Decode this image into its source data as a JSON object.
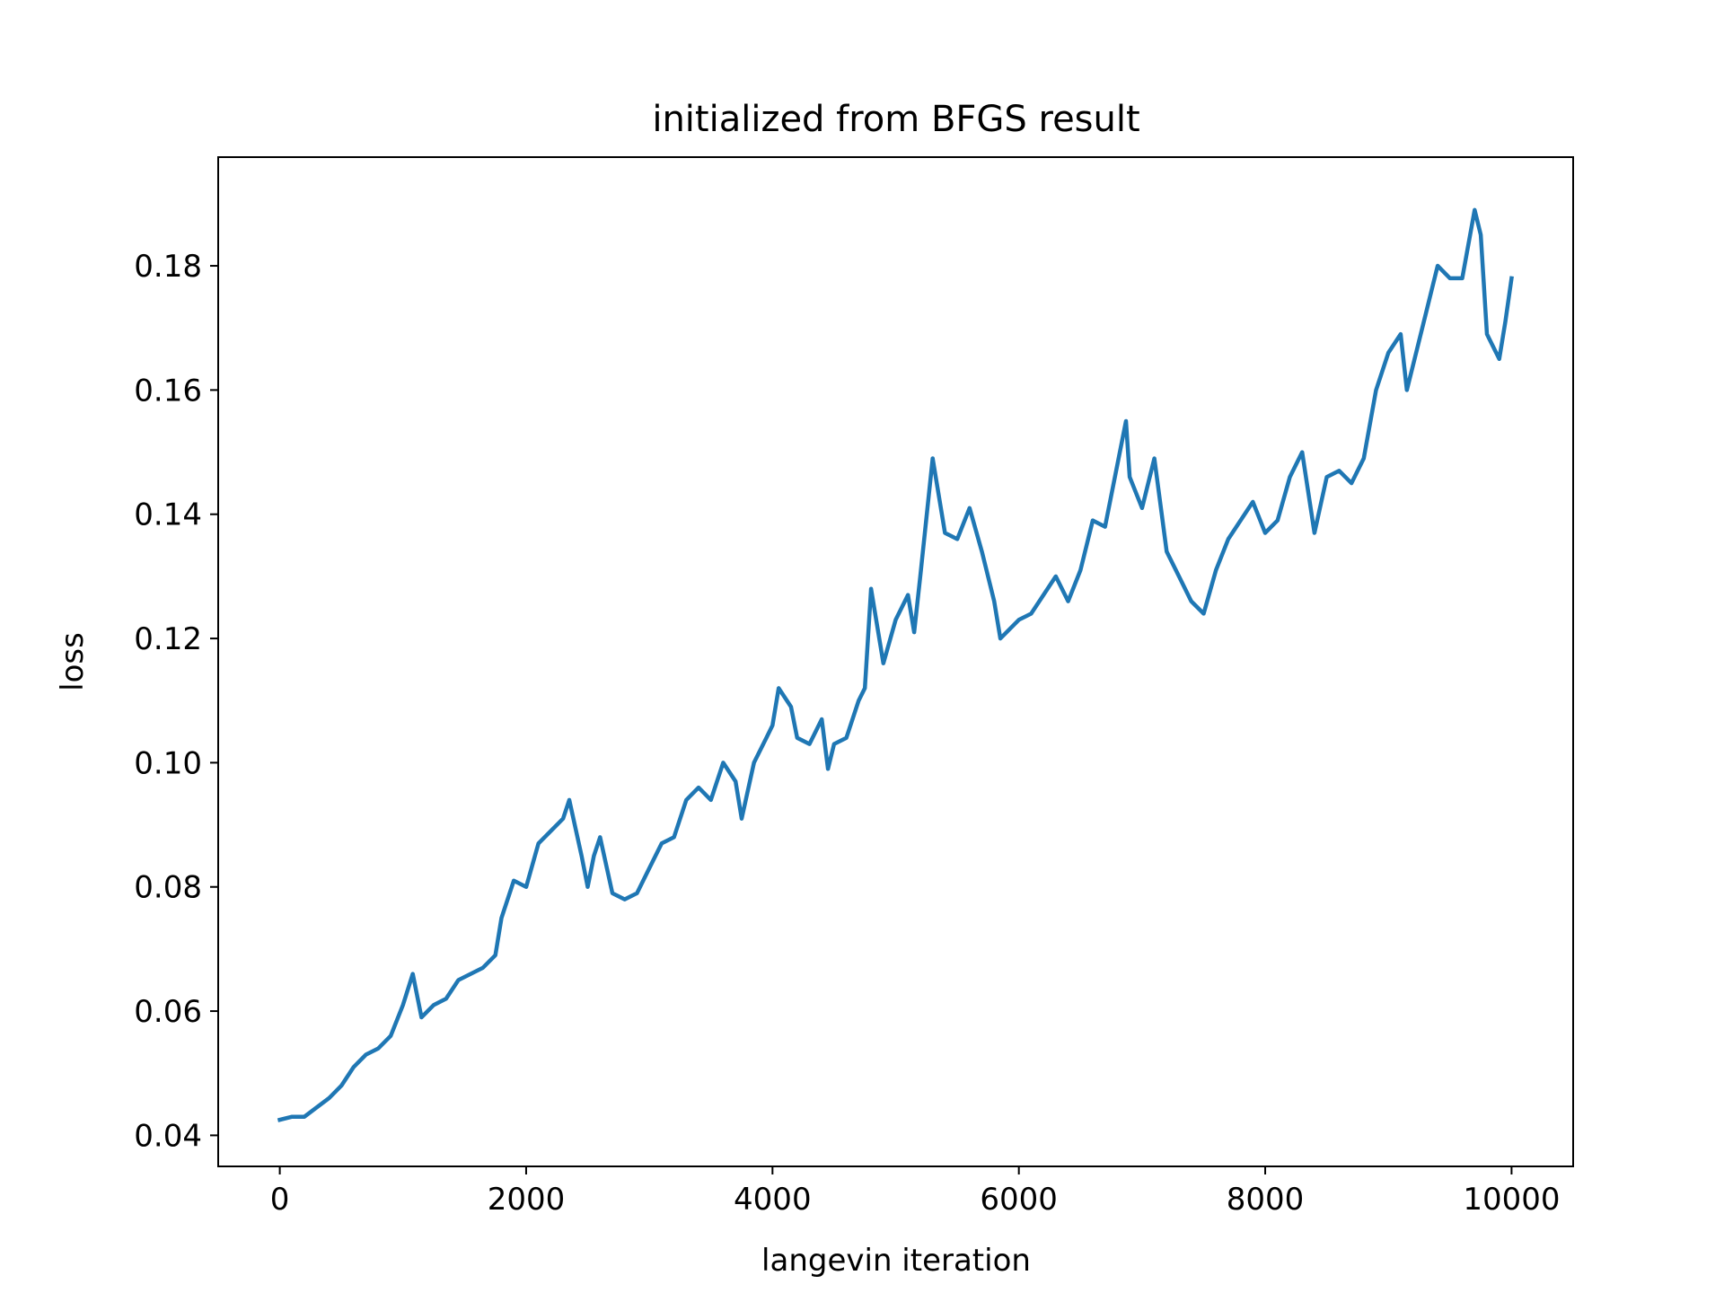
{
  "chart_data": {
    "type": "line",
    "title": "initialized from BFGS result",
    "xlabel": "langevin iteration",
    "ylabel": "loss",
    "xlim": [
      -500,
      10500
    ],
    "ylim": [
      0.035,
      0.1975
    ],
    "grid": false,
    "legend": "none",
    "line_color": "#1f77b4",
    "x_ticks": [
      0,
      2000,
      4000,
      6000,
      8000,
      10000
    ],
    "x_tick_labels": [
      "0",
      "2000",
      "4000",
      "6000",
      "8000",
      "10000"
    ],
    "y_ticks": [
      0.04,
      0.06,
      0.08,
      0.1,
      0.12,
      0.14,
      0.16,
      0.18
    ],
    "y_tick_labels": [
      "0.04",
      "0.06",
      "0.08",
      "0.10",
      "0.12",
      "0.14",
      "0.16",
      "0.18"
    ],
    "series": [
      {
        "x": [
          0,
          100,
          200,
          300,
          400,
          500,
          600,
          700,
          800,
          900,
          1000,
          1080,
          1150,
          1250,
          1350,
          1450,
          1550,
          1650,
          1750,
          1800,
          1900,
          2000,
          2100,
          2200,
          2300,
          2350,
          2450,
          2500,
          2550,
          2600,
          2700,
          2800,
          2900,
          3000,
          3100,
          3200,
          3300,
          3400,
          3500,
          3600,
          3700,
          3750,
          3850,
          3950,
          4000,
          4050,
          4150,
          4200,
          4300,
          4400,
          4450,
          4500,
          4600,
          4700,
          4750,
          4800,
          4900,
          5000,
          5100,
          5150,
          5200,
          5300,
          5400,
          5500,
          5600,
          5700,
          5800,
          5850,
          6000,
          6100,
          6200,
          6300,
          6400,
          6500,
          6600,
          6700,
          6800,
          6870,
          6900,
          7000,
          7100,
          7200,
          7300,
          7400,
          7500,
          7600,
          7700,
          7800,
          7900,
          8000,
          8100,
          8200,
          8300,
          8400,
          8500,
          8600,
          8700,
          8800,
          8900,
          9000,
          9100,
          9150,
          9200,
          9300,
          9400,
          9500,
          9600,
          9700,
          9750,
          9800,
          9900,
          9950,
          10000
        ],
        "y": [
          0.0425,
          0.043,
          0.043,
          0.0445,
          0.046,
          0.048,
          0.051,
          0.053,
          0.054,
          0.056,
          0.061,
          0.066,
          0.059,
          0.061,
          0.062,
          0.065,
          0.066,
          0.067,
          0.069,
          0.075,
          0.081,
          0.08,
          0.087,
          0.089,
          0.091,
          0.094,
          0.085,
          0.08,
          0.085,
          0.088,
          0.079,
          0.078,
          0.079,
          0.083,
          0.087,
          0.088,
          0.094,
          0.096,
          0.094,
          0.1,
          0.097,
          0.091,
          0.1,
          0.104,
          0.106,
          0.112,
          0.109,
          0.104,
          0.103,
          0.107,
          0.099,
          0.103,
          0.104,
          0.11,
          0.112,
          0.128,
          0.116,
          0.123,
          0.127,
          0.121,
          0.13,
          0.149,
          0.137,
          0.136,
          0.141,
          0.134,
          0.126,
          0.12,
          0.123,
          0.124,
          0.127,
          0.13,
          0.126,
          0.131,
          0.139,
          0.138,
          0.148,
          0.155,
          0.146,
          0.141,
          0.149,
          0.134,
          0.13,
          0.126,
          0.124,
          0.131,
          0.136,
          0.139,
          0.142,
          0.137,
          0.139,
          0.146,
          0.15,
          0.137,
          0.146,
          0.147,
          0.145,
          0.149,
          0.16,
          0.166,
          0.169,
          0.16,
          0.164,
          0.172,
          0.18,
          0.178,
          0.178,
          0.189,
          0.185,
          0.169,
          0.165,
          0.171,
          0.178
        ]
      }
    ]
  }
}
